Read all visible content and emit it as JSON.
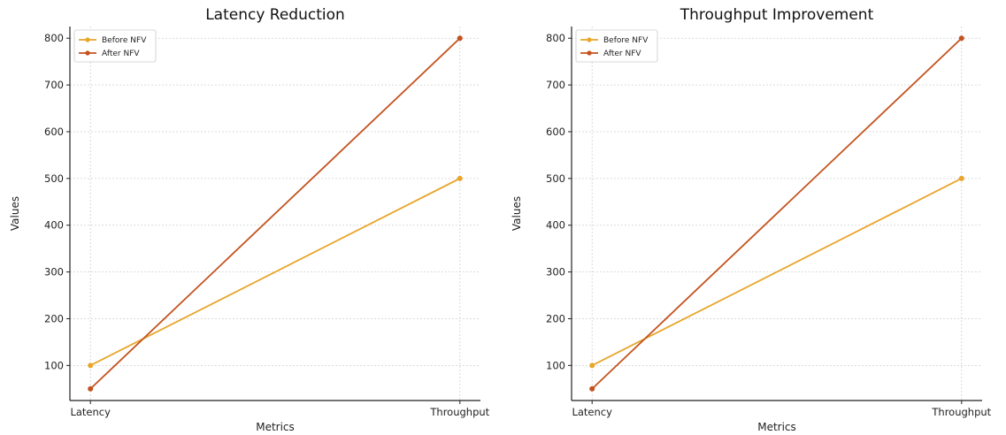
{
  "colors": {
    "before": "#e8a52a",
    "after": "#c4521e"
  },
  "chart_data": [
    {
      "type": "line",
      "title": "Latency Reduction",
      "xlabel": "Metrics",
      "ylabel": "Values",
      "categories": [
        "Latency",
        "Throughput"
      ],
      "series": [
        {
          "name": "Before NFV",
          "values": [
            100,
            500
          ],
          "color": "#e8a52a"
        },
        {
          "name": "After NFV",
          "values": [
            50,
            800
          ],
          "color": "#c4521e"
        }
      ],
      "ylim": [
        25,
        825
      ],
      "yticks": [
        100,
        200,
        300,
        400,
        500,
        600,
        700,
        800
      ],
      "grid": true,
      "legend": "top-left"
    },
    {
      "type": "line",
      "title": "Throughput Improvement",
      "xlabel": "Metrics",
      "ylabel": "Values",
      "categories": [
        "Latency",
        "Throughput"
      ],
      "series": [
        {
          "name": "Before NFV",
          "values": [
            100,
            500
          ],
          "color": "#e8a52a"
        },
        {
          "name": "After NFV",
          "values": [
            50,
            800
          ],
          "color": "#c4521e"
        }
      ],
      "ylim": [
        25,
        825
      ],
      "yticks": [
        100,
        200,
        300,
        400,
        500,
        600,
        700,
        800
      ],
      "grid": true,
      "legend": "top-left"
    }
  ]
}
